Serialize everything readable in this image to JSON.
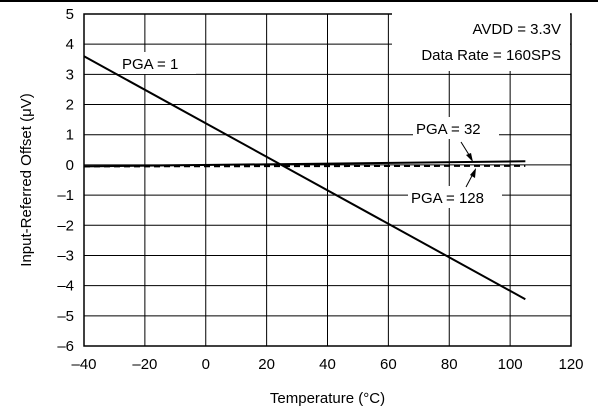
{
  "chart_data": {
    "type": "line",
    "xlabel": "Temperature (°C)",
    "ylabel": "Input-Referred Offset (μV)",
    "xlim": [
      -40,
      120
    ],
    "ylim": [
      -6,
      5
    ],
    "xticks": [
      -40,
      -20,
      0,
      20,
      40,
      60,
      80,
      100,
      120
    ],
    "yticks": [
      5,
      4,
      3,
      2,
      1,
      0,
      -1,
      -2,
      -3,
      -4,
      -5,
      -6
    ],
    "xtick_labels": [
      "–40",
      "–20",
      "0",
      "20",
      "40",
      "60",
      "80",
      "100",
      "120"
    ],
    "ytick_labels": [
      "5",
      "4",
      "3",
      "2",
      "1",
      "0",
      "–1",
      "–2",
      "–3",
      "–4",
      "–5",
      "–6"
    ],
    "grid": true,
    "series": [
      {
        "name": "PGA = 1",
        "style": "solid",
        "x": [
          -40,
          105
        ],
        "y": [
          3.6,
          -4.45
        ]
      },
      {
        "name": "PGA = 32",
        "style": "solid",
        "x": [
          -40,
          105
        ],
        "y": [
          -0.05,
          0.12
        ]
      },
      {
        "name": "PGA = 128",
        "style": "dashed",
        "x": [
          -40,
          105
        ],
        "y": [
          -0.05,
          -0.03
        ]
      }
    ],
    "annotations": {
      "conditions": [
        "AVDD = 3.3V",
        "Data Rate = 160SPS"
      ],
      "pga1": "PGA = 1",
      "pga32": "PGA = 32",
      "pga128": "PGA = 128"
    }
  }
}
